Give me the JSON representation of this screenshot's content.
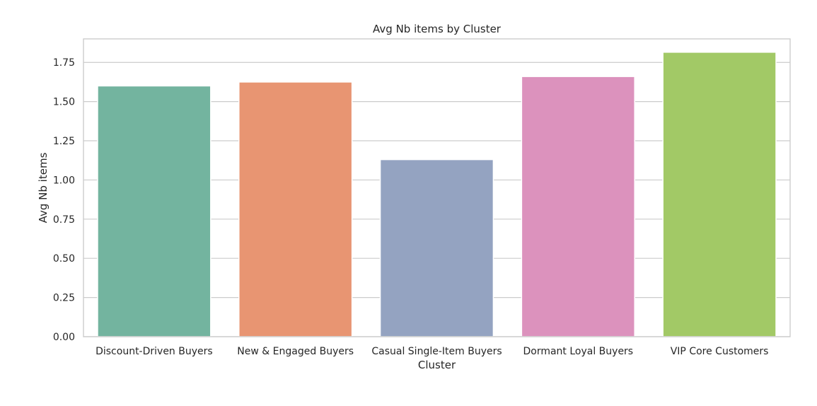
{
  "chart_data": {
    "type": "bar",
    "title": "Avg Nb items by Cluster",
    "xlabel": "Cluster",
    "ylabel": "Avg Nb items",
    "categories": [
      "Discount-Driven Buyers",
      "New & Engaged Buyers",
      "Casual Single-Item Buyers",
      "Dormant Loyal Buyers",
      "VIP Core Customers"
    ],
    "values": [
      1.6,
      1.625,
      1.13,
      1.66,
      1.815
    ],
    "colors": [
      "#73b49f",
      "#e89572",
      "#94a3c1",
      "#dc92bd",
      "#a2c966"
    ],
    "ylim": [
      0,
      1.9
    ],
    "yticks": [
      "0.00",
      "0.25",
      "0.50",
      "0.75",
      "1.00",
      "1.25",
      "1.50",
      "1.75"
    ],
    "ytick_values": [
      0,
      0.25,
      0.5,
      0.75,
      1.0,
      1.25,
      1.5,
      1.75
    ],
    "grid": "horizontal",
    "legend": "none"
  }
}
